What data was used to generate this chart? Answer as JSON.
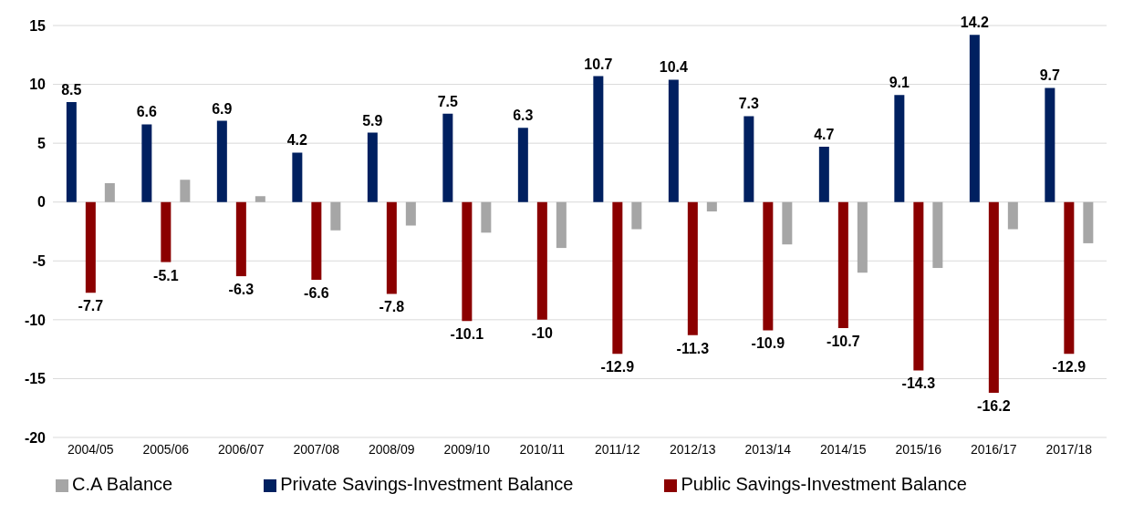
{
  "chart_data": {
    "type": "bar",
    "categories": [
      "2004/05",
      "2005/06",
      "2006/07",
      "2007/08",
      "2008/09",
      "2009/10",
      "2010/11",
      "2011/12",
      "2012/13",
      "2013/14",
      "2014/15",
      "2015/16",
      "2016/17",
      "2017/18"
    ],
    "series": [
      {
        "name": "Private Savings-Investment Balance",
        "color": "#002060",
        "values": [
          8.5,
          6.6,
          6.9,
          4.2,
          5.9,
          7.5,
          6.3,
          10.7,
          10.4,
          7.3,
          4.7,
          9.1,
          14.2,
          9.7
        ],
        "value_labels": [
          "8.5",
          "6.6",
          "6.9",
          "4.2",
          "5.9",
          "7.5",
          "6.3",
          "10.7",
          "10.4",
          "7.3",
          "4.7",
          "9.1",
          "14.2",
          "9.7"
        ]
      },
      {
        "name": "Public Savings-Investment Balance",
        "color": "#8b0000",
        "values": [
          -7.7,
          -5.1,
          -6.3,
          -6.6,
          -7.8,
          -10.1,
          -10,
          -12.9,
          -11.3,
          -10.9,
          -10.7,
          -14.3,
          -16.2,
          -12.9
        ],
        "value_labels": [
          "-7.7",
          "-5.1",
          "-6.3",
          "-6.6",
          "-7.8",
          "-10.1",
          "-10",
          "-12.9",
          "-11.3",
          "-10.9",
          "-10.7",
          "-14.3",
          "-16.2",
          "-12.9"
        ]
      },
      {
        "name": "C.A Balance",
        "color": "#a6a6a6",
        "values": [
          1.6,
          1.9,
          0.5,
          -2.4,
          -2.0,
          -2.6,
          -3.9,
          -2.3,
          -0.8,
          -3.6,
          -6.0,
          -5.6,
          -2.3,
          -3.5
        ]
      }
    ],
    "ylim": [
      -20,
      15
    ],
    "yticks": [
      -20,
      -15,
      -10,
      -5,
      0,
      5,
      10,
      15
    ],
    "grid": "y",
    "legend": "bottom"
  }
}
